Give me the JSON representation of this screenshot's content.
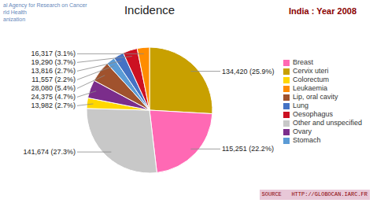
{
  "chart_data": {
    "type": "pie",
    "title": "Incidence",
    "subtitle": "India : Year 2008",
    "categories": [
      "Cervix uteri",
      "Breast",
      "Other and unspecified",
      "Colorectum",
      "Ovary",
      "Lip, oral cavity",
      "Stomach",
      "Lung",
      "Oesophagus",
      "Leukaemia"
    ],
    "values": [
      134420,
      115251,
      141674,
      13982,
      24375,
      28080,
      11557,
      13816,
      19290,
      16317
    ],
    "value_labels": [
      "134,420 (25.9%)",
      "115,251 (22.2%)",
      "141,674 (27.3%)",
      "13,982 (2.7%)",
      "24,375 (4.7%)",
      "28,080 (5.4%)",
      "11,557 (2.2%)",
      "13,816 (2.7%)",
      "19,290 (3.7%)",
      "16,317 (3.1%)"
    ],
    "colors": [
      "#C8A000",
      "#FF69B4",
      "#C8C8C8",
      "#FFD700",
      "#7B2D8B",
      "#A0522D",
      "#5B9BD5",
      "#4472C4",
      "#CC1122",
      "#FF8C00"
    ],
    "legend": "right",
    "data_labels": true,
    "annotations": [
      "al Agency for Research on Cancer",
      "rld Health",
      "anization",
      "SOURCE   HTTP://GLOBOCAN.IARC.FR"
    ]
  }
}
